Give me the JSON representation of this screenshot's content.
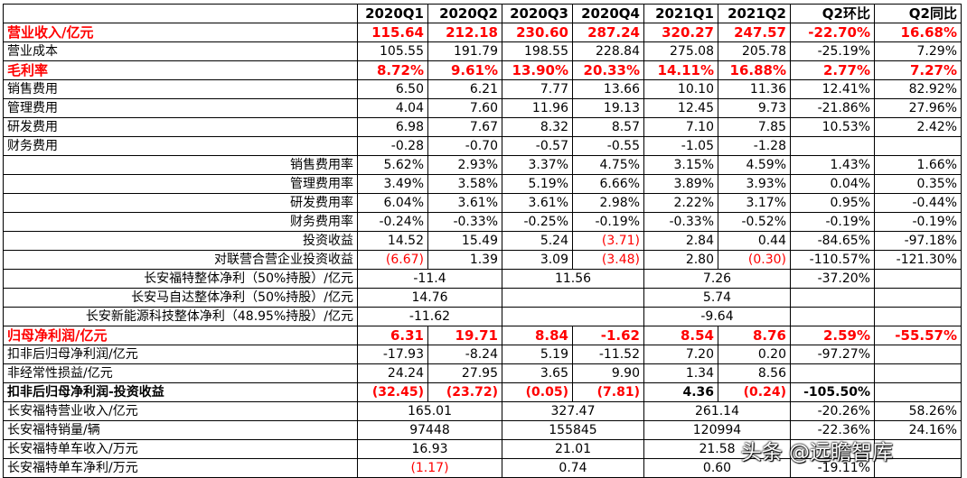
{
  "headers": [
    "",
    "2020Q1",
    "2020Q2",
    "2020Q3",
    "2020Q4",
    "2021Q1",
    "2021Q2",
    "Q2环比",
    "Q2同比"
  ],
  "rows": [
    {
      "label": "营业收入/亿元",
      "style": "hl",
      "cells": [
        "115.64",
        "212.18",
        "230.60",
        "287.24",
        "320.27",
        "247.57",
        "-22.70%",
        "16.68%"
      ]
    },
    {
      "label": "营业成本",
      "cells": [
        "105.55",
        "191.79",
        "198.55",
        "228.84",
        "275.08",
        "205.78",
        "-25.19%",
        "7.29%"
      ]
    },
    {
      "label": "毛利率",
      "style": "hl",
      "cells": [
        "8.72%",
        "9.61%",
        "13.90%",
        "20.33%",
        "14.11%",
        "16.88%",
        "2.77%",
        "7.27%"
      ]
    },
    {
      "label": "销售费用",
      "cells": [
        "6.50",
        "6.21",
        "7.77",
        "13.66",
        "10.10",
        "11.36",
        "12.41%",
        "82.92%"
      ]
    },
    {
      "label": "管理费用",
      "cells": [
        "4.04",
        "7.60",
        "11.96",
        "19.13",
        "12.45",
        "9.73",
        "-21.86%",
        "27.96%"
      ]
    },
    {
      "label": "研发费用",
      "cells": [
        "6.98",
        "7.67",
        "8.32",
        "8.57",
        "7.10",
        "7.85",
        "10.53%",
        "2.42%"
      ]
    },
    {
      "label": "财务费用",
      "cells": [
        "-0.28",
        "-0.70",
        "-0.57",
        "-0.55",
        "-1.05",
        "-1.28",
        "",
        ""
      ]
    },
    {
      "label": "销售费用率",
      "align": "right",
      "cells": [
        "5.62%",
        "2.93%",
        "3.37%",
        "4.75%",
        "3.15%",
        "4.59%",
        "1.43%",
        "1.66%"
      ]
    },
    {
      "label": "管理费用率",
      "align": "right",
      "cells": [
        "3.49%",
        "3.58%",
        "5.19%",
        "6.66%",
        "3.89%",
        "3.93%",
        "0.04%",
        "0.35%"
      ]
    },
    {
      "label": "研发费用率",
      "align": "right",
      "cells": [
        "6.04%",
        "3.61%",
        "3.61%",
        "2.98%",
        "2.22%",
        "3.17%",
        "0.95%",
        "-0.44%"
      ]
    },
    {
      "label": "财务费用率",
      "align": "right",
      "cells": [
        "-0.24%",
        "-0.33%",
        "-0.25%",
        "-0.19%",
        "-0.33%",
        "-0.52%",
        "-0.19%",
        "-0.19%"
      ]
    },
    {
      "label": "投资收益",
      "align": "right",
      "cells": [
        "14.52",
        "15.49",
        "5.24",
        "(3.71)",
        "2.84",
        "0.44",
        "-84.65%",
        "-97.18%"
      ],
      "red": [
        3
      ]
    },
    {
      "label": "对联营合营企业投资收益",
      "align": "right",
      "cells": [
        "(6.67)",
        "1.39",
        "3.09",
        "(3.48)",
        "2.80",
        "(0.30)",
        "-110.57%",
        "-121.30%"
      ],
      "red": [
        0,
        3,
        5
      ]
    },
    {
      "label": "长安福特整体净利（50%持股）/亿元",
      "align": "right",
      "merged": [
        "-11.4",
        "11.56",
        "7.26"
      ],
      "tail": [
        "-37.20%",
        ""
      ]
    },
    {
      "label": "长安马自达整体净利（50%持股）/亿元",
      "align": "right",
      "merged": [
        "14.76",
        "",
        "5.74"
      ],
      "tail": [
        "",
        ""
      ]
    },
    {
      "label": "长安新能源科技整体净利（48.95%持股）/亿元",
      "align": "right",
      "merged": [
        "-11.62",
        "",
        "-9.64"
      ],
      "tail": [
        "",
        ""
      ]
    },
    {
      "label": "归母净利润/亿元",
      "style": "hl",
      "cells": [
        "6.31",
        "19.71",
        "8.84",
        "-1.62",
        "8.54",
        "8.76",
        "2.59%",
        "-55.57%"
      ]
    },
    {
      "label": "扣非后归母净利润/亿元",
      "cells": [
        "-17.93",
        "-8.24",
        "5.19",
        "-11.52",
        "7.20",
        "0.20",
        "-97.27%",
        ""
      ]
    },
    {
      "label": "非经常性损益/亿元",
      "cells": [
        "24.24",
        "27.95",
        "3.65",
        "9.90",
        "1.34",
        "8.56",
        "",
        ""
      ]
    },
    {
      "label": "扣非后归母净利润-投资收益",
      "style": "bold",
      "cells": [
        "(32.45)",
        "(23.72)",
        "(0.05)",
        "(7.81)",
        "4.36",
        "(0.24)",
        "-105.50%",
        ""
      ],
      "red": [
        0,
        1,
        2,
        3,
        5
      ]
    },
    {
      "label": "长安福特营业收入/亿元",
      "merged": [
        "165.01",
        "327.47",
        "261.14"
      ],
      "tail": [
        "-20.26%",
        "58.26%"
      ]
    },
    {
      "label": "长安福特销量/辆",
      "merged": [
        "97448",
        "155845",
        "120994"
      ],
      "tail": [
        "-22.36%",
        "24.16%"
      ]
    },
    {
      "label": "长安福特单车收入/万元",
      "merged": [
        "16.93",
        "21.01",
        "21.58"
      ],
      "tail": [
        "",
        ""
      ]
    },
    {
      "label": "长安福特单车净利/万元",
      "merged": [
        "(1.17)",
        "0.74",
        "0.60"
      ],
      "tail": [
        "-19.11%",
        ""
      ],
      "mergedRed": [
        0
      ]
    }
  ],
  "watermark": "头条 @远瞻智库",
  "colors": {
    "highlight": "#ff0000",
    "grid": "#000000",
    "background": "#ffffff"
  }
}
